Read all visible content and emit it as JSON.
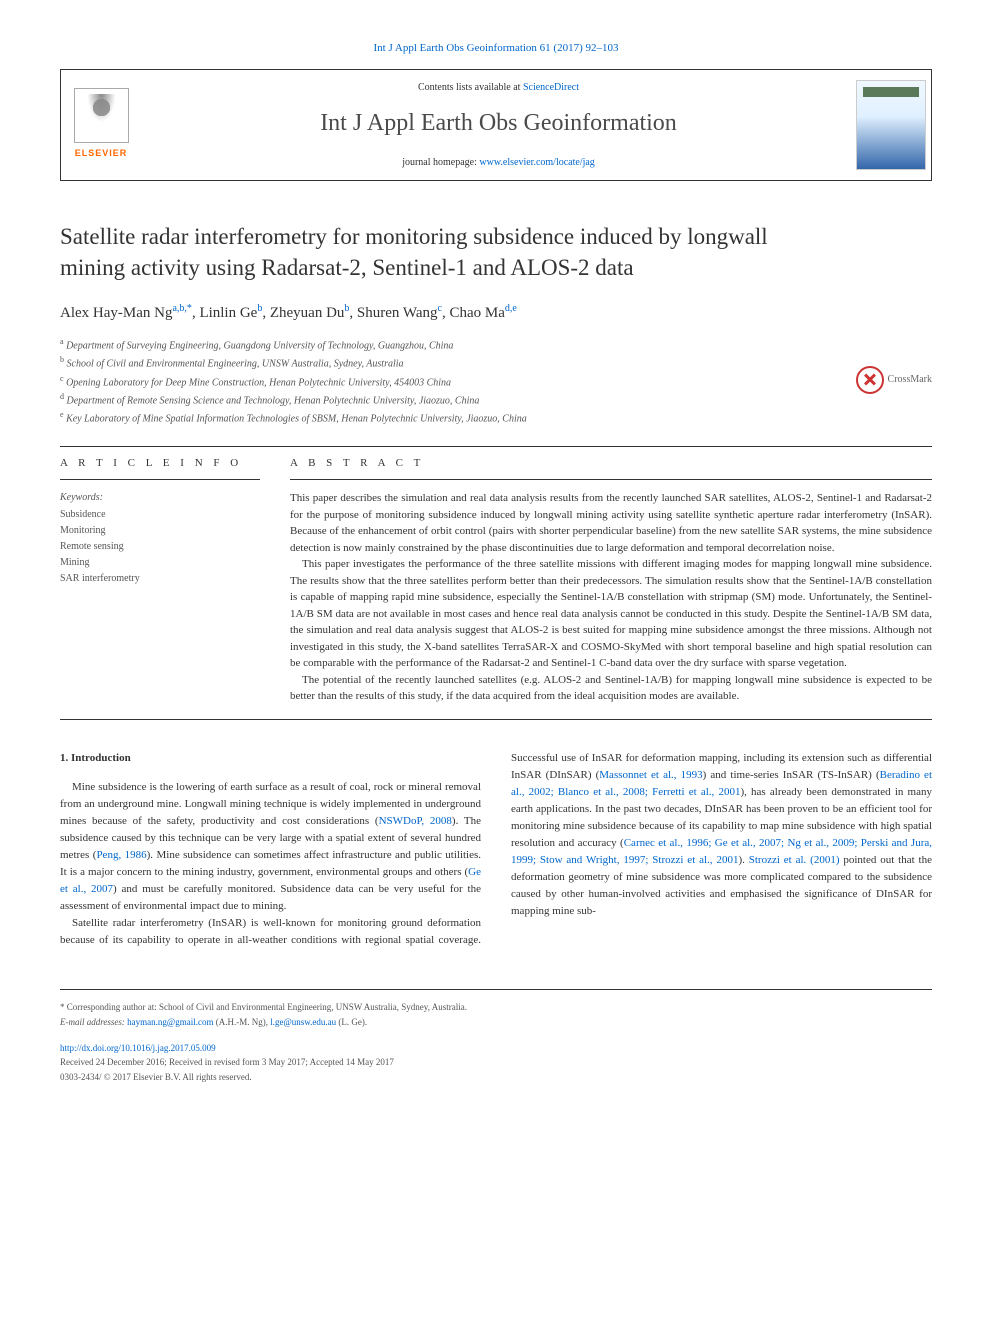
{
  "header": {
    "citation_link": "Int J Appl Earth Obs Geoinformation 61 (2017) 92–103",
    "contents_prefix": "Contents lists available at ",
    "contents_link": "ScienceDirect",
    "journal_name": "Int J Appl Earth Obs Geoinformation",
    "homepage_prefix": "journal homepage: ",
    "homepage_link": "www.elsevier.com/locate/jag",
    "elsevier_label": "ELSEVIER",
    "crossmark_label": "CrossMark"
  },
  "article": {
    "title": "Satellite radar interferometry for monitoring subsidence induced by longwall mining activity using Radarsat-2, Sentinel-1 and ALOS-2 data",
    "authors_html": "Alex Hay-Man Ng<sup>a,b,*</sup>, Linlin Ge<sup>b</sup>, Zheyuan Du<sup>b</sup>, Shuren Wang<sup>c</sup>, Chao Ma<sup>d,e</sup>",
    "affiliations": [
      "a Department of Surveying Engineering, Guangdong University of Technology, Guangzhou, China",
      "b School of Civil and Environmental Engineering, UNSW Australia, Sydney, Australia",
      "c Opening Laboratory for Deep Mine Construction, Henan Polytechnic University, 454003 China",
      "d Department of Remote Sensing Science and Technology, Henan Polytechnic University, Jiaozuo, China",
      "e Key Laboratory of Mine Spatial Information Technologies of SBSM, Henan Polytechnic University, Jiaozuo, China"
    ]
  },
  "info": {
    "section_label": "A R T I C L E  I N F O",
    "keywords_label": "Keywords:",
    "keywords": [
      "Subsidence",
      "Monitoring",
      "Remote sensing",
      "Mining",
      "SAR interferometry"
    ]
  },
  "abstract": {
    "section_label": "A B S T R A C T",
    "paragraphs": [
      "This paper describes the simulation and real data analysis results from the recently launched SAR satellites, ALOS-2, Sentinel-1 and Radarsat-2 for the purpose of monitoring subsidence induced by longwall mining activity using satellite synthetic aperture radar interferometry (InSAR). Because of the enhancement of orbit control (pairs with shorter perpendicular baseline) from the new satellite SAR systems, the mine subsidence detection is now mainly constrained by the phase discontinuities due to large deformation and temporal decorrelation noise.",
      "This paper investigates the performance of the three satellite missions with different imaging modes for mapping longwall mine subsidence. The results show that the three satellites perform better than their predecessors. The simulation results show that the Sentinel-1A/B constellation is capable of mapping rapid mine subsidence, especially the Sentinel-1A/B constellation with stripmap (SM) mode. Unfortunately, the Sentinel-1A/B SM data are not available in most cases and hence real data analysis cannot be conducted in this study. Despite the Sentinel-1A/B SM data, the simulation and real data analysis suggest that ALOS-2 is best suited for mapping mine subsidence amongst the three missions. Although not investigated in this study, the X-band satellites TerraSAR-X and COSMO-SkyMed with short temporal baseline and high spatial resolution can be comparable with the performance of the Radarsat-2 and Sentinel-1 C-band data over the dry surface with sparse vegetation.",
      "The potential of the recently launched satellites (e.g. ALOS-2 and Sentinel-1A/B) for mapping longwall mine subsidence is expected to be better than the results of this study, if the data acquired from the ideal acquisition modes are available."
    ]
  },
  "body": {
    "heading": "1. Introduction",
    "p1": "Mine subsidence is the lowering of earth surface as a result of coal, rock or mineral removal from an underground mine. Longwall mining technique is widely implemented in underground mines because of the safety, productivity and cost considerations (",
    "p1_ref1": "NSWDoP, 2008",
    "p1_cont1": "). The subsidence caused by this technique can be very large with a spatial extent of several hundred metres (",
    "p1_ref2": "Peng, 1986",
    "p1_cont2": "). Mine subsidence can sometimes affect infrastructure and public utilities. It is a major concern to the mining industry, government, environmental groups and others (",
    "p1_ref3": "Ge et al., 2007",
    "p1_cont3": ") and must be carefully monitored. Subsidence data can be very useful for the assessment of environmental impact due to mining.",
    "p2": "Satellite radar interferometry (InSAR) is well-known for monitoring",
    "p3_start": "ground deformation because of its capability to operate in all-weather conditions with regional spatial coverage. Successful use of InSAR for deformation mapping, including its extension such as differential InSAR (DInSAR) (",
    "p3_ref1": "Massonnet et al., 1993",
    "p3_cont1": ") and time-series InSAR (TS-InSAR) (",
    "p3_ref2": "Beradino et al., 2002; Blanco et al., 2008; Ferretti et al., 2001",
    "p3_cont2": "), has already been demonstrated in many earth applications. In the past two decades, DInSAR has been proven to be an efficient tool for monitoring mine subsidence because of its capability to map mine subsidence with high spatial resolution and accuracy (",
    "p3_ref3": "Carnec et al., 1996; Ge et al., 2007; Ng et al., 2009; Perski and Jura, 1999; Stow and Wright, 1997; Strozzi et al., 2001",
    "p3_cont3": "). ",
    "p3_ref4": "Strozzi et al. (2001)",
    "p3_cont4": " pointed out that the deformation geometry of mine subsidence was more complicated compared to the subsidence caused by other human-involved activities and emphasised the significance of DInSAR for mapping mine sub-"
  },
  "footer": {
    "corresponding": "* Corresponding author at: School of Civil and Environmental Engineering, UNSW Australia, Sydney, Australia.",
    "email_label": "E-mail addresses: ",
    "email1": "hayman.ng@gmail.com",
    "email1_name": " (A.H.-M. Ng), ",
    "email2": "l.ge@unsw.edu.au",
    "email2_name": " (L. Ge).",
    "doi": "http://dx.doi.org/10.1016/j.jag.2017.05.009",
    "received": "Received 24 December 2016; Received in revised form 3 May 2017; Accepted 14 May 2017",
    "copyright": "0303-2434/ © 2017 Elsevier B.V. All rights reserved."
  },
  "colors": {
    "link": "#0066cc",
    "text": "#333333",
    "elsevier_orange": "#ff6600",
    "crossmark_red": "#cc3333"
  }
}
